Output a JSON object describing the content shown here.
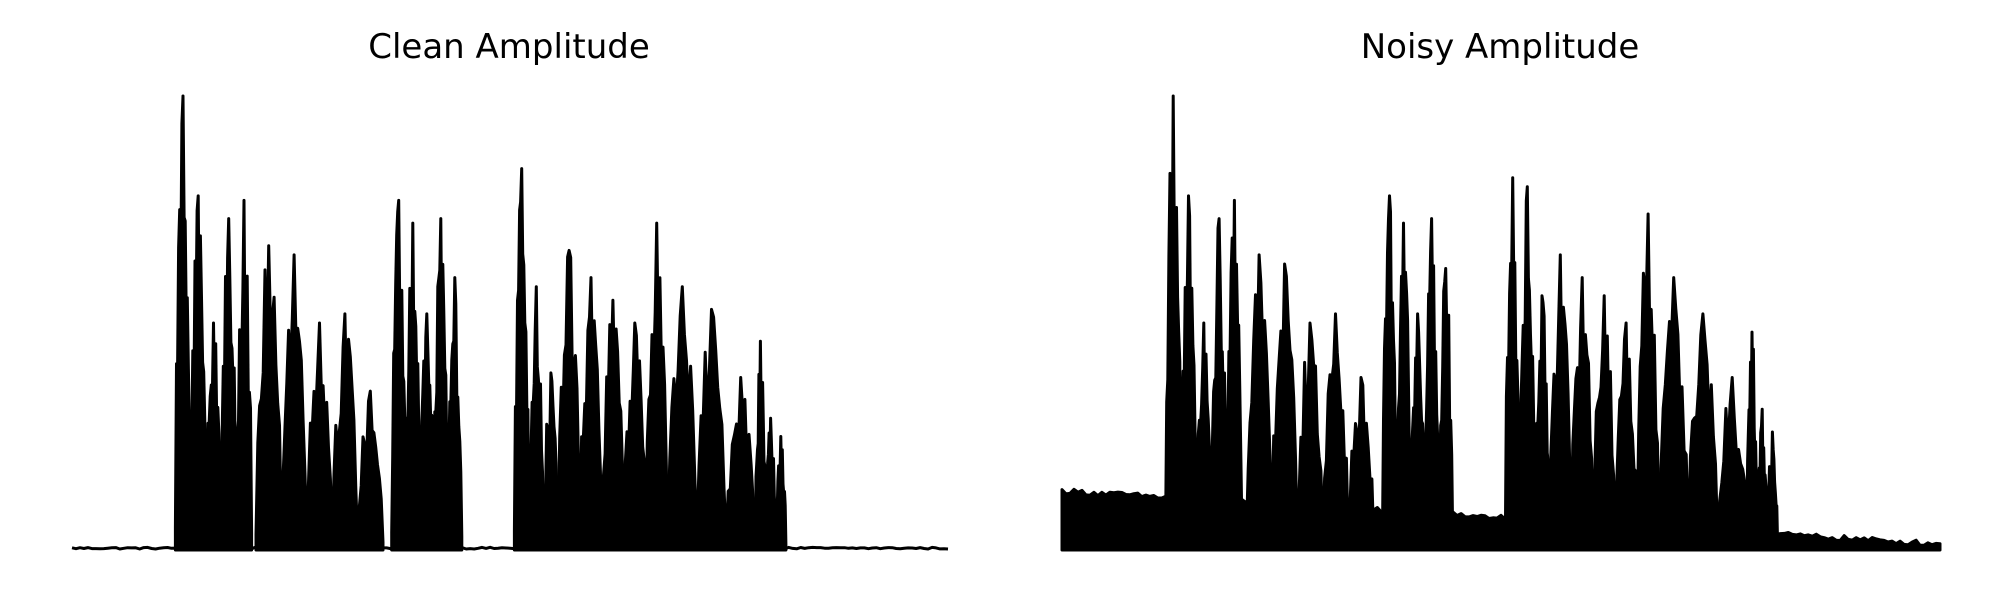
{
  "chart_data": [
    {
      "type": "line",
      "title": "Clean Amplitude",
      "xlabel": "",
      "ylabel": "",
      "axes_visible": false,
      "grid": false,
      "xlim": [
        0,
        1
      ],
      "ylim": [
        0,
        1
      ],
      "color": "#000000",
      "baseline": 0.0,
      "bursts": [
        {
          "start": 0.118,
          "end": 0.205,
          "peaks": [
            1.0,
            0.78,
            0.5,
            0.73,
            0.77
          ]
        },
        {
          "start": 0.21,
          "end": 0.355,
          "peaks": [
            0.67,
            0.65,
            0.5,
            0.52,
            0.35
          ]
        },
        {
          "start": 0.365,
          "end": 0.445,
          "peaks": [
            0.77,
            0.72,
            0.52,
            0.73,
            0.6
          ]
        },
        {
          "start": 0.505,
          "end": 0.555,
          "peaks": [
            0.84,
            0.58,
            0.39
          ]
        },
        {
          "start": 0.555,
          "end": 0.68,
          "peaks": [
            0.66,
            0.6,
            0.55,
            0.5,
            0.72
          ]
        },
        {
          "start": 0.68,
          "end": 0.78,
          "peaks": [
            0.58,
            0.53,
            0.38
          ]
        },
        {
          "start": 0.78,
          "end": 0.815,
          "peaks": [
            0.46,
            0.29,
            0.25
          ]
        }
      ]
    },
    {
      "type": "line",
      "title": "Noisy Amplitude",
      "xlabel": "",
      "ylabel": "",
      "axes_visible": false,
      "grid": false,
      "xlim": [
        0,
        1
      ],
      "ylim": [
        0,
        1
      ],
      "color": "#000000",
      "baseline": 0.13,
      "bursts": [
        {
          "start": 0.118,
          "end": 0.205,
          "peaks": [
            1.0,
            0.78,
            0.5,
            0.73,
            0.77
          ]
        },
        {
          "start": 0.21,
          "end": 0.355,
          "peaks": [
            0.65,
            0.63,
            0.5,
            0.52,
            0.38
          ]
        },
        {
          "start": 0.365,
          "end": 0.445,
          "peaks": [
            0.78,
            0.72,
            0.52,
            0.73,
            0.62
          ]
        },
        {
          "start": 0.505,
          "end": 0.555,
          "peaks": [
            0.82,
            0.8,
            0.56
          ]
        },
        {
          "start": 0.555,
          "end": 0.68,
          "peaks": [
            0.65,
            0.6,
            0.56,
            0.5,
            0.74
          ]
        },
        {
          "start": 0.68,
          "end": 0.78,
          "peaks": [
            0.6,
            0.52,
            0.38
          ]
        },
        {
          "start": 0.78,
          "end": 0.815,
          "peaks": [
            0.48,
            0.31,
            0.26
          ]
        }
      ]
    }
  ]
}
